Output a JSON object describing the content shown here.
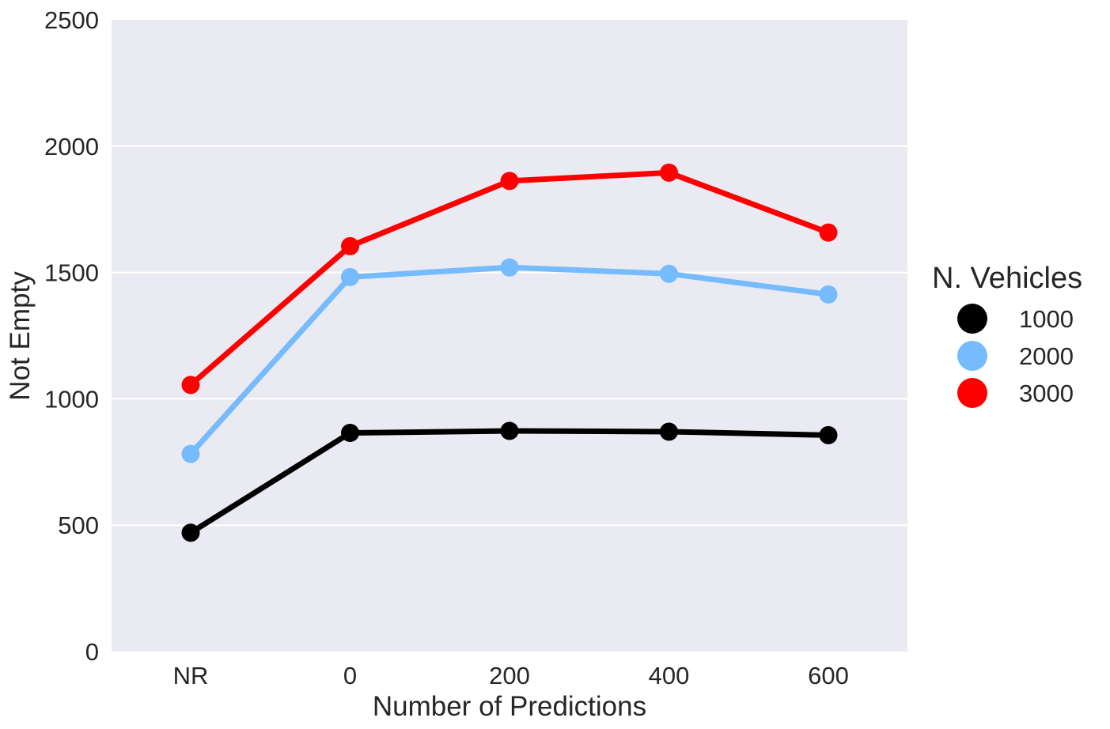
{
  "chart_data": {
    "type": "line",
    "xlabel": "Number of Predictions",
    "ylabel": "Not Empty",
    "categories": [
      "NR",
      "0",
      "200",
      "400",
      "600"
    ],
    "ylim": [
      0,
      2500
    ],
    "yticks": [
      0,
      500,
      1000,
      1500,
      2000,
      2500
    ],
    "grid": true,
    "legend": {
      "title": "N. Vehicles",
      "placement": "right"
    },
    "series": [
      {
        "name": "1000",
        "color": "#000000",
        "values": [
          470,
          865,
          873,
          870,
          856
        ]
      },
      {
        "name": "2000",
        "color": "#75bbfd",
        "values": [
          782,
          1482,
          1520,
          1495,
          1413
        ]
      },
      {
        "name": "3000",
        "color": "#ff0000",
        "values": [
          1055,
          1604,
          1862,
          1895,
          1658
        ]
      }
    ]
  }
}
